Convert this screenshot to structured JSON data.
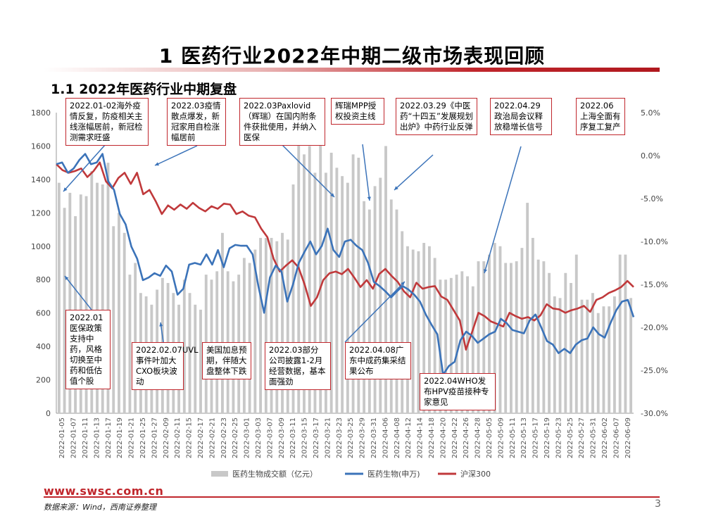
{
  "page": {
    "title": "1 医药行业2022年中期二级市场表现回顾",
    "subtitle": "1.1 2022年医药行业中期复盘",
    "footer_url": "www.swsc.com.cn",
    "source": "数据来源：Wind，西南证券整理",
    "page_number": "3"
  },
  "colors": {
    "bar": "#c8c8c8",
    "line_blue": "#3b73b9",
    "line_red": "#c0393b",
    "accent": "#c0262c"
  },
  "annotations": [
    {
      "id": "a1",
      "text": "2022.01-02海外疫情反复，防疫相关主线涨幅居前，新冠检测需求旺盛"
    },
    {
      "id": "a2",
      "text": "2022.03疫情散点爆发，新冠家用自检涨幅居前"
    },
    {
      "id": "a3",
      "text": "2022.03Paxlovid（辉瑞）在国内附条件获批使用，并纳入医保"
    },
    {
      "id": "a4",
      "text": "辉瑞MPP授权投资主线"
    },
    {
      "id": "a5",
      "text": "2022.03.29《中医药“十四五”发展规划出炉》中药行业反弹"
    },
    {
      "id": "a6",
      "text": "2022.04.29政治局会议释放稳增长信号"
    },
    {
      "id": "a7",
      "text": "2022.06上海全面有序复工复产"
    },
    {
      "id": "b1",
      "text": "2022.01医保政策支持中药，风格切换至中药和低估值个股"
    },
    {
      "id": "b2",
      "text": "2022.02.07UVL事件叶加大CXO板块波动"
    },
    {
      "id": "b3",
      "text": "美国加息预期，伴随大盘整体下跌"
    },
    {
      "id": "b4",
      "text": "2022.03部分公司披露1-2月经营数据，基本面强劲"
    },
    {
      "id": "b5",
      "text": "2022.04.08广东中成药集采结果公布"
    },
    {
      "id": "b6",
      "text": "2022.04WHO发布HPV疫苗接种专家意见"
    }
  ],
  "chart_data": {
    "type": "bar+line",
    "title": "",
    "left_axis": {
      "min": 0,
      "max": 1800,
      "step": 200,
      "ticks": [
        "0",
        "200",
        "400",
        "600",
        "800",
        "1000",
        "1200",
        "1400",
        "1600",
        "1800"
      ]
    },
    "right_axis": {
      "min": -30,
      "max": 5,
      "step": 5,
      "ticks": [
        "-30.0%",
        "-25.0%",
        "-20.0%",
        "-15.0%",
        "-10.0%",
        "-5.0%",
        "0.0%",
        "5.0%"
      ]
    },
    "x_tick_labels": [
      "2022-01-05",
      "2022-01-07",
      "2022-01-11",
      "2022-01-13",
      "2022-01-17",
      "2022-01-19",
      "2022-01-21",
      "2022-01-25",
      "2022-01-27",
      "2022-02-09",
      "2022-02-11",
      "2022-02-15",
      "2022-02-17",
      "2022-02-21",
      "2022-02-23",
      "2022-02-25",
      "2022-03-01",
      "2022-03-03",
      "2022-03-07",
      "2022-03-09",
      "2022-03-11",
      "2022-03-15",
      "2022-03-17",
      "2022-03-21",
      "2022-03-23",
      "2022-03-25",
      "2022-03-29",
      "2022-03-31",
      "2022-04-06",
      "2022-04-08",
      "2022-04-12",
      "2022-04-14",
      "2022-04-18",
      "2022-04-20",
      "2022-04-22",
      "2022-04-26",
      "2022-04-28",
      "2022-05-05",
      "2022-05-09",
      "2022-05-11",
      "2022-05-13",
      "2022-05-17",
      "2022-05-19",
      "2022-05-23",
      "2022-05-25",
      "2022-05-27",
      "2022-05-31",
      "2022-06-02",
      "2022-06-07",
      "2022-06-09"
    ],
    "series": [
      {
        "name": "医药生物成交额（亿元）",
        "type": "bar",
        "axis": "left",
        "values": [
          1380,
          1230,
          1320,
          1180,
          1310,
          1300,
          1450,
          1380,
          1370,
          1500,
          1120,
          1200,
          1080,
          830,
          900,
          720,
          700,
          650,
          740,
          810,
          780,
          720,
          650,
          800,
          720,
          650,
          620,
          830,
          800,
          850,
          1080,
          850,
          790,
          830,
          930,
          900,
          980,
          1050,
          1050,
          1050,
          1030,
          1080,
          1040,
          1370,
          1650,
          1550,
          1600,
          1440,
          1650,
          1440,
          1560,
          1470,
          1420,
          1380,
          1550,
          1530,
          1270,
          1220,
          1360,
          1410,
          1600,
          1280,
          1220,
          1090,
          1000,
          980,
          970,
          1020,
          1000,
          930,
          800,
          800,
          810,
          830,
          850,
          820,
          760,
          910,
          910,
          950,
          1020,
          1000,
          900,
          900,
          910,
          990,
          1260,
          1050,
          920,
          910,
          840,
          700,
          690,
          840,
          780,
          950,
          680,
          680,
          720,
          600,
          640,
          640,
          700,
          950,
          950,
          690
        ]
      },
      {
        "name": "医药生物(申万)",
        "type": "line",
        "axis": "right",
        "values": [
          -1,
          -0.8,
          -2,
          -1.5,
          -0.5,
          0.2,
          -1,
          -0.8,
          0.2,
          -3,
          -4,
          -6.8,
          -8,
          -10.6,
          -12,
          -14.5,
          -14.2,
          -13.7,
          -14,
          -12.8,
          -13.5,
          -16.2,
          -15.5,
          -12.7,
          -12.5,
          -12.7,
          -11.5,
          -12.7,
          -11,
          -13,
          -10.8,
          -10.4,
          -10.5,
          -10.5,
          -11.5,
          -15.2,
          -18.3,
          -14.2,
          -12.8,
          -13.5,
          -17,
          -15,
          -12.5,
          -11.2,
          -10,
          -11.5,
          -10.5,
          -8.5,
          -11,
          -11.8,
          -10,
          -9.8,
          -10.5,
          -11,
          -12.5,
          -14.7,
          -15.2,
          -15.8,
          -16.5,
          -15.8,
          -15.2,
          -15.6,
          -16.2,
          -17,
          -18.5,
          -19.7,
          -20.8,
          -25.5,
          -24.5,
          -24,
          -21.5,
          -20.5,
          -21,
          -21.8,
          -21.3,
          -20.8,
          -20.5,
          -19,
          -19.5,
          -20.3,
          -20.5,
          -20.7,
          -19.2,
          -18.5,
          -20,
          -21.6,
          -22,
          -23,
          -22.5,
          -23,
          -22,
          -21.5,
          -21.3,
          -20,
          -20.8,
          -21.2,
          -19.5,
          -18,
          -17,
          -16.8,
          -18.8
        ]
      },
      {
        "name": "沪深300",
        "type": "line",
        "axis": "right",
        "values": [
          -1,
          -1.7,
          -2,
          -1.8,
          -1.5,
          -2.5,
          -1.8,
          -0.8,
          -3,
          -3.8,
          -2.6,
          -2,
          -3.3,
          -2,
          -4.5,
          -4,
          -5.3,
          -6.8,
          -5.8,
          -6.3,
          -5.7,
          -6.2,
          -5.5,
          -6.1,
          -6.5,
          -5.9,
          -6.2,
          -5.6,
          -5.7,
          -6.8,
          -6.5,
          -7,
          -7.2,
          -8.5,
          -9.5,
          -12,
          -13.5,
          -12.8,
          -12.2,
          -13,
          -15,
          -17.5,
          -16.5,
          -14.5,
          -13.7,
          -13.5,
          -13.8,
          -13.2,
          -14.2,
          -15.3,
          -14.5,
          -15.5,
          -13.8,
          -13.2,
          -14,
          -14.7,
          -15.8,
          -16.5,
          -14.8,
          -15.5,
          -15.3,
          -15.2,
          -16.4,
          -16.8,
          -18,
          -19.2,
          -22.6,
          -20.5,
          -18.3,
          -18.7,
          -19.3,
          -19.6,
          -19.9,
          -18.3,
          -18.7,
          -19,
          -18.8,
          -19.2,
          -18.6,
          -17.3,
          -17.8,
          -17.9,
          -18.3,
          -18,
          -17.8,
          -17.5,
          -18.2,
          -16.8,
          -16.5,
          -16,
          -15.7,
          -15.3,
          -14.6,
          -15.3
        ]
      }
    ],
    "legend": [
      "医药生物成交额（亿元）",
      "医药生物(申万)",
      "沪深300"
    ],
    "legend_position": "bottom"
  }
}
